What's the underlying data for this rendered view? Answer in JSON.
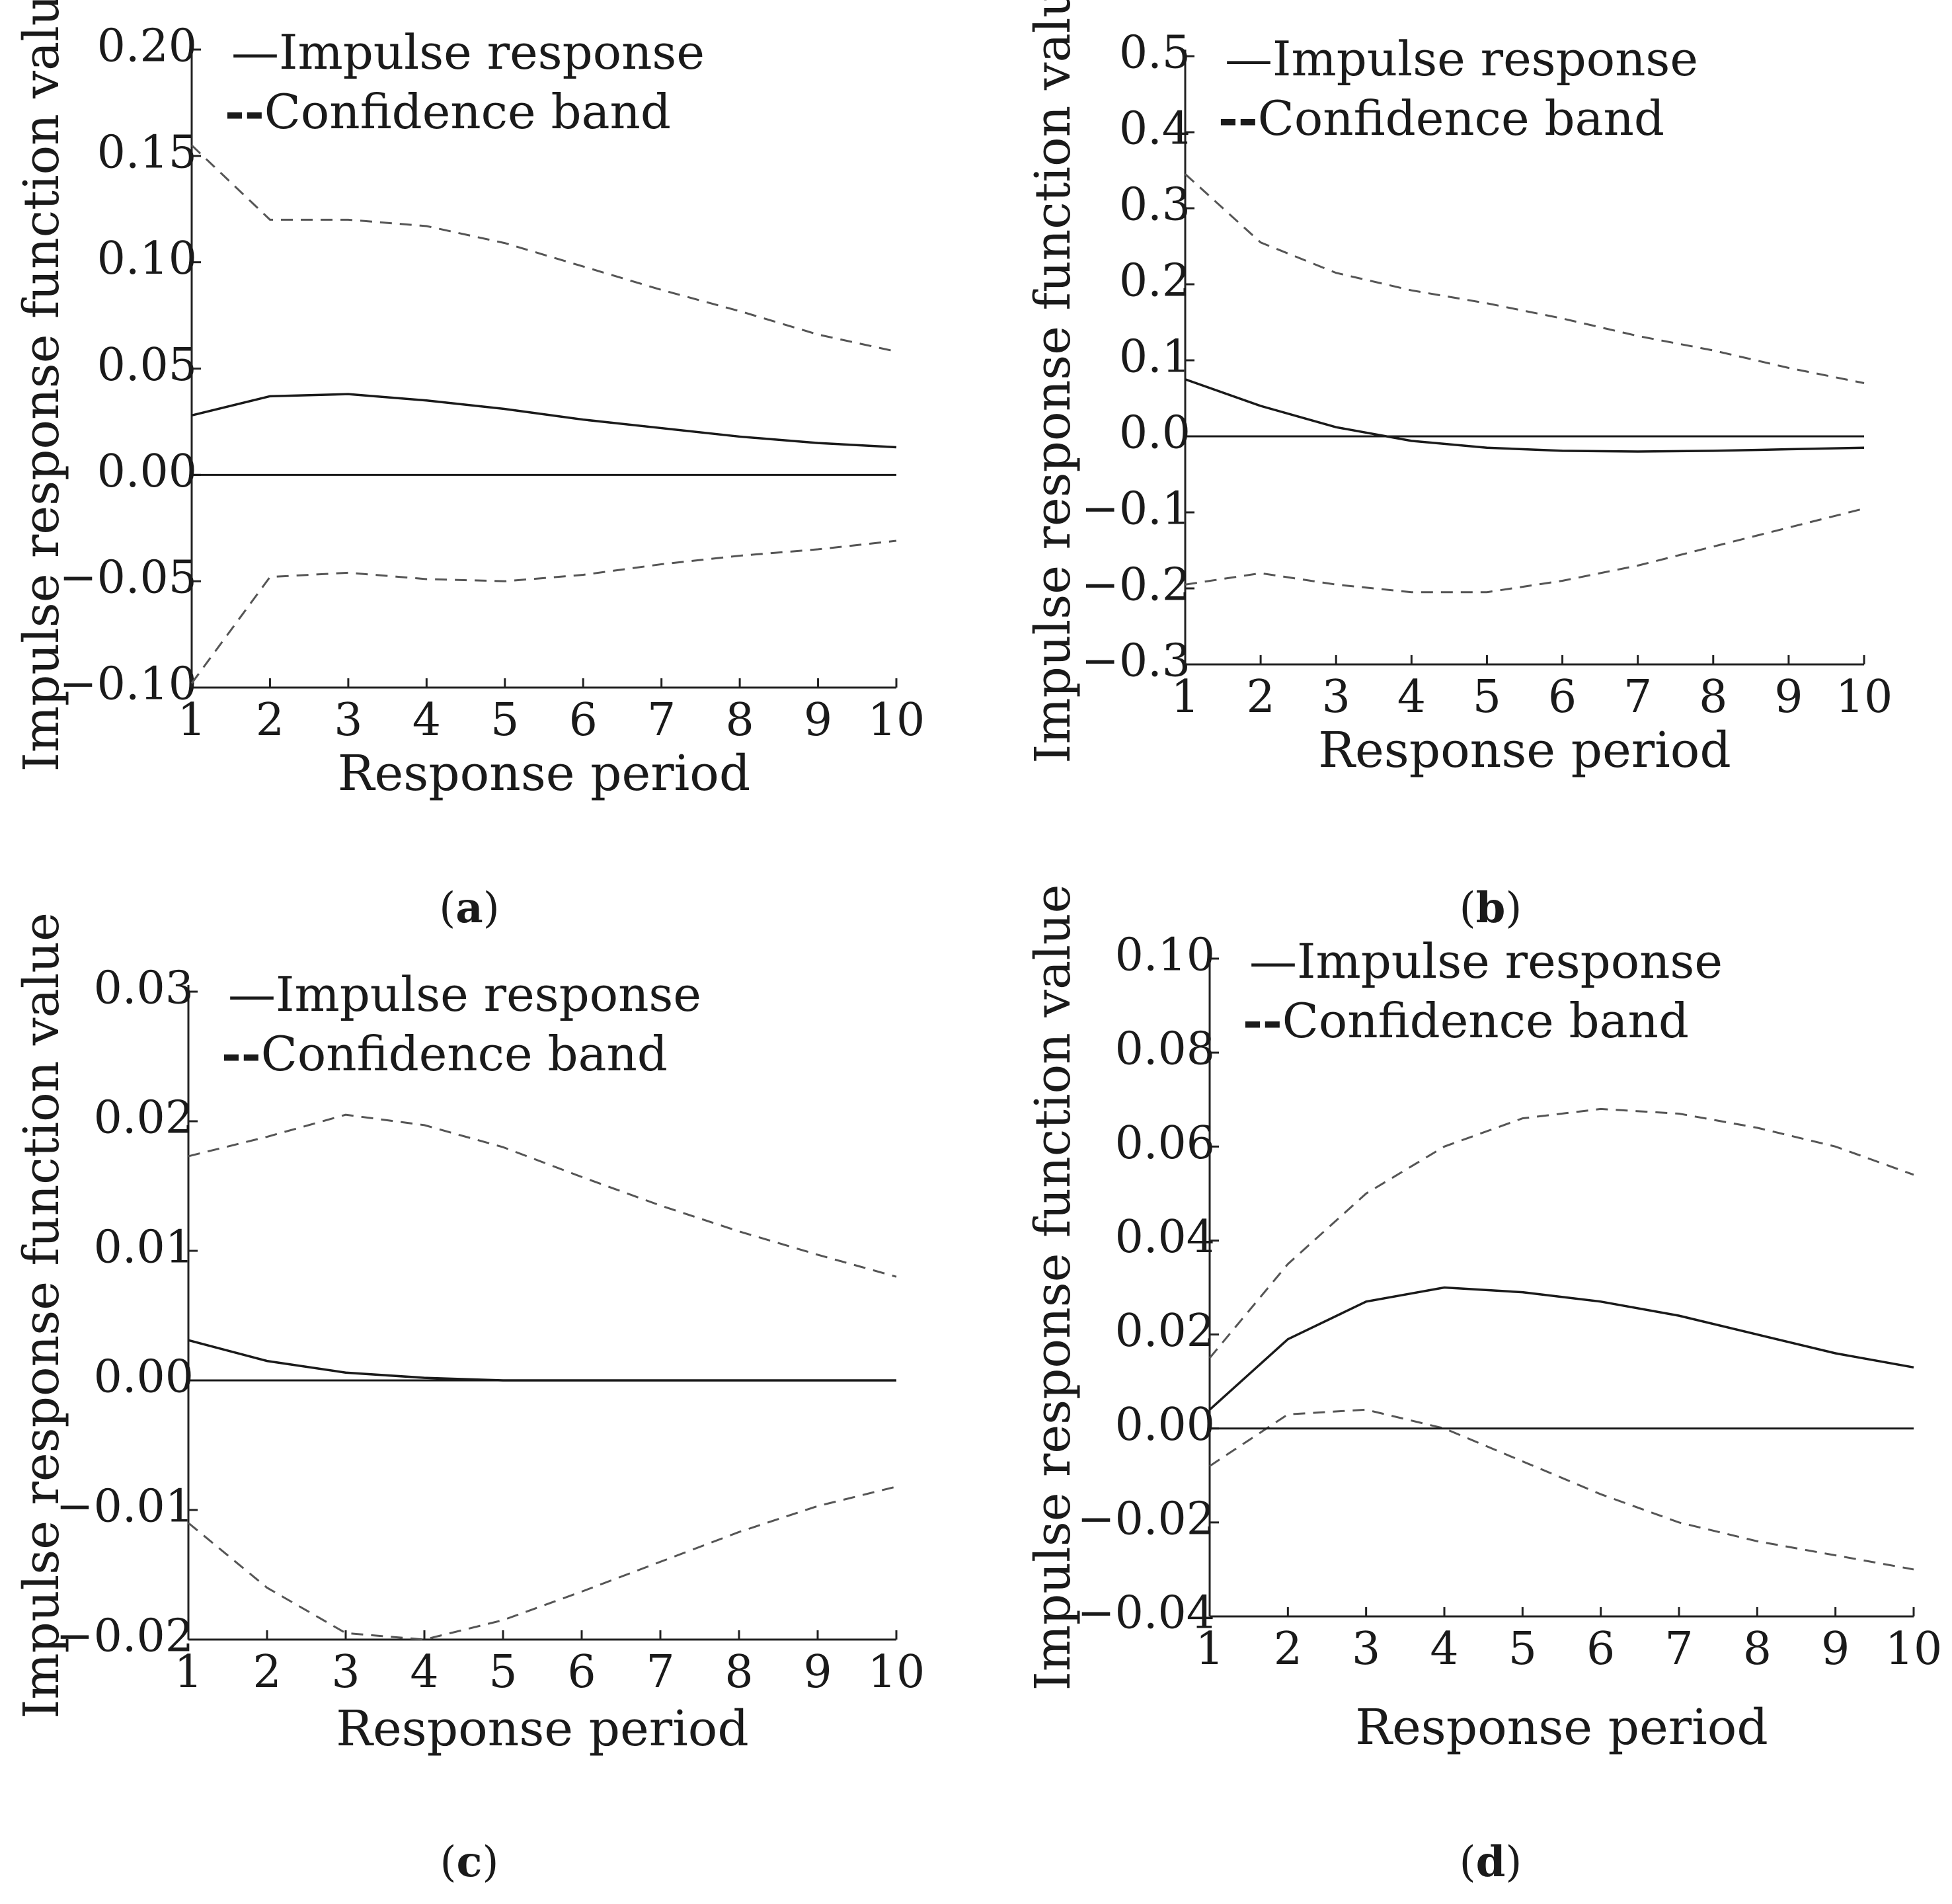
{
  "chart_data": [
    {
      "panel": "a",
      "type": "line",
      "xlabel": "Response period",
      "ylabel": "Impulse response function value",
      "x": [
        1,
        2,
        3,
        4,
        5,
        6,
        7,
        8,
        9,
        10
      ],
      "xticks": [
        "1",
        "2",
        "3",
        "4",
        "5",
        "6",
        "7",
        "8",
        "9",
        "10"
      ],
      "ylim": [
        -0.1,
        0.2
      ],
      "yticks": [
        {
          "value": 0.2,
          "label": "0.20"
        },
        {
          "value": 0.15,
          "label": "0.15"
        },
        {
          "value": 0.1,
          "label": "0.10"
        },
        {
          "value": 0.05,
          "label": "0.05"
        },
        {
          "value": 0.0,
          "label": "0.00"
        },
        {
          "value": -0.05,
          "label": "−0.05"
        },
        {
          "value": -0.1,
          "label": "−0.10"
        }
      ],
      "legend": {
        "impulse": "Impulse response",
        "band": "Confidence band",
        "impulse_marker": "—",
        "band_marker": "--"
      },
      "series": [
        {
          "name": "Impulse response",
          "style": "solid",
          "values": [
            0.028,
            0.037,
            0.038,
            0.035,
            0.031,
            0.026,
            0.022,
            0.018,
            0.015,
            0.013
          ]
        },
        {
          "name": "Upper confidence band",
          "style": "dashed",
          "values": [
            0.155,
            0.12,
            0.12,
            0.117,
            0.109,
            0.098,
            0.087,
            0.077,
            0.066,
            0.058
          ]
        },
        {
          "name": "Lower confidence band",
          "style": "dashed",
          "values": [
            -0.098,
            -0.048,
            -0.046,
            -0.049,
            -0.05,
            -0.047,
            -0.042,
            -0.038,
            -0.035,
            -0.031
          ]
        },
        {
          "name": "Zero line",
          "style": "solid",
          "values": [
            0,
            0,
            0,
            0,
            0,
            0,
            0,
            0,
            0,
            0
          ]
        }
      ],
      "caption": {
        "open": "(",
        "letter": "a",
        "close": ")"
      }
    },
    {
      "panel": "b",
      "type": "line",
      "xlabel": "Response period",
      "ylabel": "Impulse response function value",
      "x": [
        1,
        2,
        3,
        4,
        5,
        6,
        7,
        8,
        9,
        10
      ],
      "xticks": [
        "1",
        "2",
        "3",
        "4",
        "5",
        "6",
        "7",
        "8",
        "9",
        "10"
      ],
      "ylim": [
        -0.3,
        0.5
      ],
      "yticks": [
        {
          "value": 0.5,
          "label": "0.5"
        },
        {
          "value": 0.4,
          "label": "0.4"
        },
        {
          "value": 0.3,
          "label": "0.3"
        },
        {
          "value": 0.2,
          "label": "0.2"
        },
        {
          "value": 0.1,
          "label": "0.1"
        },
        {
          "value": 0.0,
          "label": "0.0"
        },
        {
          "value": -0.1,
          "label": "−0.1"
        },
        {
          "value": -0.2,
          "label": "−0.2"
        },
        {
          "value": -0.3,
          "label": "−0.3"
        }
      ],
      "legend": {
        "impulse": "Impulse response",
        "band": "Confidence band",
        "impulse_marker": "—",
        "band_marker": "--"
      },
      "series": [
        {
          "name": "Impulse response",
          "style": "solid",
          "values": [
            0.075,
            0.04,
            0.012,
            -0.006,
            -0.015,
            -0.019,
            -0.02,
            -0.019,
            -0.017,
            -0.015
          ]
        },
        {
          "name": "Upper confidence band",
          "style": "dashed",
          "values": [
            0.345,
            0.255,
            0.215,
            0.192,
            0.175,
            0.155,
            0.132,
            0.113,
            0.09,
            0.07
          ]
        },
        {
          "name": "Lower confidence band",
          "style": "dashed",
          "values": [
            -0.195,
            -0.18,
            -0.195,
            -0.205,
            -0.205,
            -0.19,
            -0.17,
            -0.145,
            -0.12,
            -0.095
          ]
        },
        {
          "name": "Zero line",
          "style": "solid",
          "values": [
            0,
            0,
            0,
            0,
            0,
            0,
            0,
            0,
            0,
            0
          ]
        }
      ],
      "caption": {
        "open": "(",
        "letter": "b",
        "close": ")"
      }
    },
    {
      "panel": "c",
      "type": "line",
      "xlabel": "Response period",
      "ylabel": "Impulse response function value",
      "x": [
        1,
        2,
        3,
        4,
        5,
        6,
        7,
        8,
        9,
        10
      ],
      "xticks": [
        "1",
        "2",
        "3",
        "4",
        "5",
        "6",
        "7",
        "8",
        "9",
        "10"
      ],
      "ylim": [
        -0.02,
        0.03
      ],
      "yticks": [
        {
          "value": 0.03,
          "label": "0.03"
        },
        {
          "value": 0.02,
          "label": "0.02"
        },
        {
          "value": 0.01,
          "label": "0.01"
        },
        {
          "value": 0.0,
          "label": "0.00"
        },
        {
          "value": -0.01,
          "label": "−0.01"
        },
        {
          "value": -0.02,
          "label": "−0.02"
        }
      ],
      "legend": {
        "impulse": "Impulse response",
        "band": "Confidence band",
        "impulse_marker": "—",
        "band_marker": "--"
      },
      "series": [
        {
          "name": "Impulse response",
          "style": "solid",
          "values": [
            0.0031,
            0.0015,
            0.0006,
            0.0002,
            0.0,
            0.0,
            0.0,
            0.0,
            0.0,
            0.0
          ]
        },
        {
          "name": "Upper confidence band",
          "style": "dashed",
          "values": [
            0.0173,
            0.0188,
            0.0205,
            0.0197,
            0.018,
            0.0157,
            0.0135,
            0.0115,
            0.0097,
            0.008
          ]
        },
        {
          "name": "Lower confidence band",
          "style": "dashed",
          "values": [
            -0.011,
            -0.016,
            -0.0195,
            -0.02,
            -0.0185,
            -0.0163,
            -0.014,
            -0.0117,
            -0.0097,
            -0.0082
          ]
        },
        {
          "name": "Zero line",
          "style": "solid",
          "values": [
            0,
            0,
            0,
            0,
            0,
            0,
            0,
            0,
            0,
            0
          ]
        }
      ],
      "caption": {
        "open": "(",
        "letter": "c",
        "close": ")"
      }
    },
    {
      "panel": "d",
      "type": "line",
      "xlabel": "Response period",
      "ylabel": "Impulse response function value",
      "x": [
        1,
        2,
        3,
        4,
        5,
        6,
        7,
        8,
        9,
        10
      ],
      "xticks": [
        "1",
        "2",
        "3",
        "4",
        "5",
        "6",
        "7",
        "8",
        "9",
        "10"
      ],
      "ylim": [
        -0.04,
        0.1
      ],
      "yticks": [
        {
          "value": 0.1,
          "label": "0.10"
        },
        {
          "value": 0.08,
          "label": "0.08"
        },
        {
          "value": 0.06,
          "label": "0.06"
        },
        {
          "value": 0.04,
          "label": "0.04"
        },
        {
          "value": 0.02,
          "label": "0.02"
        },
        {
          "value": 0.0,
          "label": "0.00"
        },
        {
          "value": -0.02,
          "label": "−0.02"
        },
        {
          "value": -0.04,
          "label": "−0.04"
        }
      ],
      "legend": {
        "impulse": "Impulse response",
        "band": "Confidence band",
        "impulse_marker": "—",
        "band_marker": "--"
      },
      "series": [
        {
          "name": "Impulse response",
          "style": "solid",
          "values": [
            0.004,
            0.019,
            0.027,
            0.03,
            0.029,
            0.027,
            0.024,
            0.02,
            0.016,
            0.013
          ]
        },
        {
          "name": "Upper confidence band",
          "style": "dashed",
          "values": [
            0.015,
            0.035,
            0.05,
            0.06,
            0.066,
            0.068,
            0.067,
            0.064,
            0.06,
            0.054
          ]
        },
        {
          "name": "Lower confidence band",
          "style": "dashed",
          "values": [
            -0.008,
            0.003,
            0.004,
            0.0,
            -0.007,
            -0.014,
            -0.02,
            -0.024,
            -0.027,
            -0.03
          ]
        },
        {
          "name": "Zero line",
          "style": "solid",
          "values": [
            0,
            0,
            0,
            0,
            0,
            0,
            0,
            0,
            0,
            0
          ]
        }
      ],
      "caption": {
        "open": "(",
        "letter": "d",
        "close": ")"
      }
    }
  ]
}
